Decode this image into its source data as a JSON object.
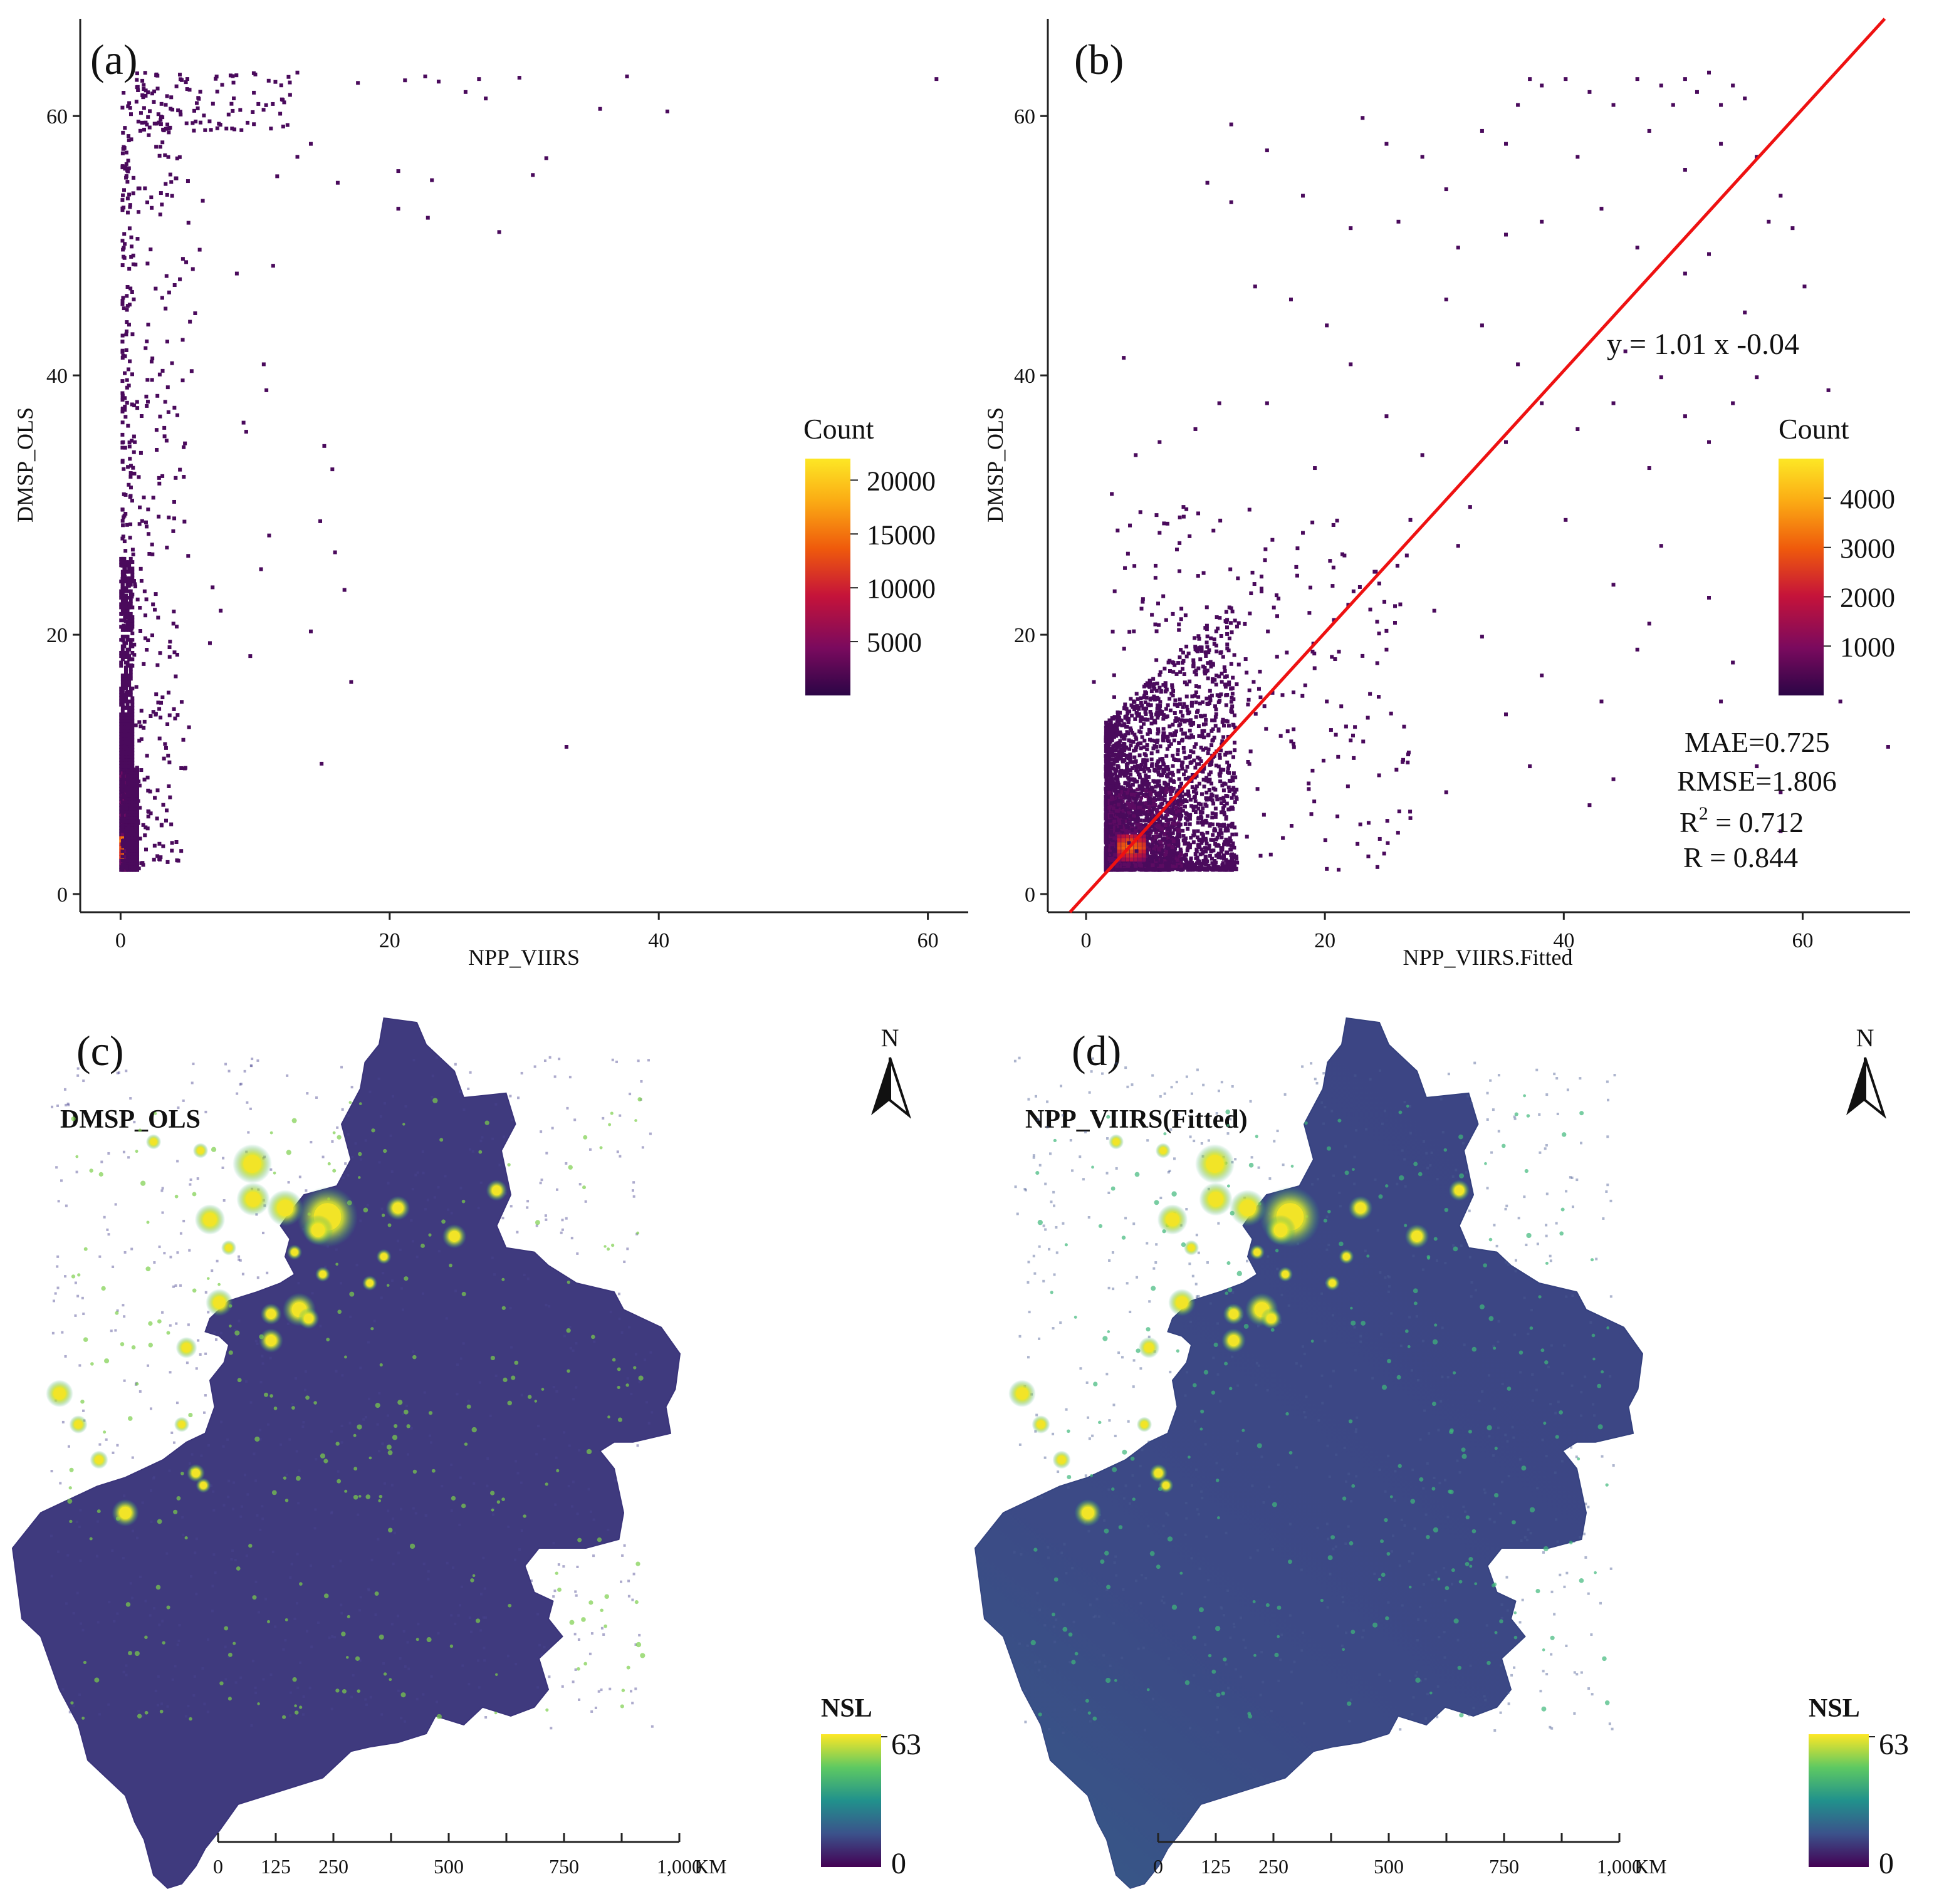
{
  "colors": {
    "viridis": [
      "#440154",
      "#3b528b",
      "#21918c",
      "#5ec962",
      "#fde725"
    ],
    "inferno": [
      "#2b0546",
      "#7a0a5e",
      "#c5133a",
      "#ef5a0c",
      "#fbab14",
      "#fde725"
    ],
    "fit_line": "#ee1111",
    "map_background": "#3f3a7e",
    "map_glow": "#f2e427",
    "map_halo": "#2bb07f"
  },
  "icons": {
    "north_arrow": "north-arrow-icon"
  },
  "chart_data": [
    {
      "id": "a",
      "type": "scatter",
      "panel_label": "(a)",
      "xlabel": "NPP_VIIRS",
      "ylabel": "DMSP_OLS",
      "xlim": [
        -3,
        63
      ],
      "ylim": [
        -1.4,
        67.5
      ],
      "xticks": [
        0,
        20,
        40,
        60
      ],
      "yticks": [
        0,
        20,
        40,
        60
      ],
      "legend": {
        "title": "Count",
        "position": "right",
        "range": [
          0,
          22000
        ],
        "ticks": [
          5000,
          10000,
          15000,
          20000
        ]
      },
      "dense_core": {
        "x": [
          0,
          0.5
        ],
        "y": [
          2,
          26
        ],
        "peak_y": [
          3,
          4.5
        ]
      },
      "points": [
        [
          13,
          63.5
        ],
        [
          17.5,
          62.7
        ],
        [
          21,
          62.9
        ],
        [
          22.5,
          63.2
        ],
        [
          23.5,
          62.8
        ],
        [
          26.5,
          63
        ],
        [
          29.5,
          63.1
        ],
        [
          37.5,
          63.2
        ],
        [
          60.5,
          63
        ],
        [
          25.5,
          62
        ],
        [
          27,
          61.5
        ],
        [
          35.5,
          60.7
        ],
        [
          40.5,
          60.5
        ],
        [
          31.5,
          56.9
        ],
        [
          30.5,
          55.6
        ],
        [
          20.5,
          55.9
        ],
        [
          23,
          55.2
        ],
        [
          14,
          58
        ],
        [
          13,
          57
        ],
        [
          11.5,
          55.5
        ],
        [
          16,
          55
        ],
        [
          20.5,
          53
        ],
        [
          22.7,
          52.3
        ],
        [
          28,
          51.2
        ],
        [
          8.5,
          48
        ],
        [
          11.2,
          48.6
        ],
        [
          10.5,
          41
        ],
        [
          10.7,
          39
        ],
        [
          9,
          36.5
        ],
        [
          9.2,
          35.8
        ],
        [
          15,
          34.7
        ],
        [
          15.6,
          32.9
        ],
        [
          14.7,
          28.9
        ],
        [
          10.9,
          27.8
        ],
        [
          15.8,
          26.5
        ],
        [
          10.3,
          25.2
        ],
        [
          16.5,
          23.6
        ],
        [
          6.7,
          23.8
        ],
        [
          14,
          20.4
        ],
        [
          9.5,
          18.5
        ],
        [
          17,
          16.5
        ],
        [
          14.8,
          10.2
        ],
        [
          33,
          11.5
        ],
        [
          6.5,
          19.5
        ],
        [
          7.3,
          22
        ]
      ]
    },
    {
      "id": "b",
      "type": "scatter",
      "panel_label": "(b)",
      "xlabel": "NPP_VIIRS.Fitted",
      "ylabel": "DMSP_OLS",
      "xlim": [
        -3.2,
        69
      ],
      "ylim": [
        -1.4,
        67.5
      ],
      "xticks": [
        0,
        20,
        40,
        60
      ],
      "yticks": [
        0,
        20,
        40,
        60
      ],
      "legend": {
        "title": "Count",
        "position": "right",
        "range": [
          0,
          4800
        ],
        "ticks": [
          1000,
          2000,
          3000,
          4000
        ]
      },
      "fit": {
        "slope": 1.01,
        "intercept": -0.04,
        "equation": "y = 1.01 x -0.04"
      },
      "stats": {
        "mae": "MAE=0.725",
        "rmse": "RMSE=1.806",
        "r2_label": "R",
        "r2_sup": "2",
        "r2_value": " = 0.712",
        "r": "R = 0.844"
      },
      "dense_core": {
        "x": [
          1,
          13
        ],
        "y": [
          2,
          25
        ],
        "peak": [
          3.5,
          3.8
        ]
      },
      "points": [
        [
          36,
          61
        ],
        [
          37,
          63
        ],
        [
          38,
          62.5
        ],
        [
          40,
          63
        ],
        [
          42,
          62
        ],
        [
          44,
          61
        ],
        [
          46,
          63
        ],
        [
          48,
          62.5
        ],
        [
          49,
          61
        ],
        [
          50,
          63
        ],
        [
          51,
          62
        ],
        [
          52,
          63.5
        ],
        [
          53,
          61
        ],
        [
          54,
          62.5
        ],
        [
          55,
          61.5
        ],
        [
          33,
          59
        ],
        [
          35,
          58
        ],
        [
          41,
          57
        ],
        [
          47,
          59
        ],
        [
          50,
          56
        ],
        [
          53,
          58
        ],
        [
          56,
          57
        ],
        [
          58,
          54
        ],
        [
          59,
          51.5
        ],
        [
          57,
          52
        ],
        [
          23,
          60
        ],
        [
          25,
          58
        ],
        [
          28,
          57
        ],
        [
          30,
          54.5
        ],
        [
          12,
          59.5
        ],
        [
          15,
          57.5
        ],
        [
          10,
          55
        ],
        [
          12,
          53.5
        ],
        [
          18,
          54
        ],
        [
          22,
          51.5
        ],
        [
          26,
          52
        ],
        [
          31,
          50
        ],
        [
          35,
          51
        ],
        [
          38,
          52
        ],
        [
          43,
          53
        ],
        [
          46,
          50
        ],
        [
          50,
          48
        ],
        [
          52,
          49.5
        ],
        [
          55,
          45
        ],
        [
          45,
          42
        ],
        [
          48,
          40
        ],
        [
          44,
          38
        ],
        [
          41,
          36
        ],
        [
          47,
          33
        ],
        [
          50,
          37
        ],
        [
          52,
          35
        ],
        [
          54,
          38
        ],
        [
          56,
          40
        ],
        [
          60,
          47
        ],
        [
          30,
          46
        ],
        [
          33,
          44
        ],
        [
          36,
          41
        ],
        [
          38,
          38
        ],
        [
          35,
          35
        ],
        [
          32,
          30
        ],
        [
          28,
          34
        ],
        [
          25,
          37
        ],
        [
          22,
          41
        ],
        [
          20,
          44
        ],
        [
          17,
          46
        ],
        [
          14,
          47
        ],
        [
          11,
          38
        ],
        [
          9,
          36
        ],
        [
          6,
          35
        ],
        [
          3,
          41.5
        ],
        [
          2,
          31
        ],
        [
          4,
          34
        ],
        [
          6,
          28
        ],
        [
          8,
          30
        ],
        [
          18,
          28
        ],
        [
          24,
          25
        ],
        [
          29,
          22
        ],
        [
          33,
          20
        ],
        [
          38,
          17
        ],
        [
          43,
          15
        ],
        [
          46,
          19
        ],
        [
          47,
          21
        ],
        [
          52,
          23
        ],
        [
          53,
          15
        ],
        [
          56,
          10
        ],
        [
          58,
          5
        ],
        [
          63,
          15
        ],
        [
          67,
          11.5
        ],
        [
          44,
          9
        ],
        [
          42,
          7
        ],
        [
          37,
          10
        ],
        [
          30,
          8
        ],
        [
          27,
          6
        ],
        [
          22,
          12
        ],
        [
          20,
          15
        ],
        [
          25,
          19
        ],
        [
          35,
          14
        ],
        [
          15,
          38
        ],
        [
          19,
          33
        ],
        [
          27,
          29
        ],
        [
          31,
          27
        ],
        [
          40,
          29
        ],
        [
          48,
          27
        ],
        [
          44,
          24
        ],
        [
          61,
          25
        ],
        [
          62,
          39
        ],
        [
          0.5,
          16.5
        ],
        [
          54,
          18
        ],
        [
          58,
          8
        ]
      ]
    }
  ],
  "maps": [
    {
      "id": "c",
      "panel_label": "(c)",
      "title": "DMSP_OLS",
      "north_label": "N",
      "legend": {
        "title": "NSL",
        "max": "63",
        "min": "0"
      },
      "scale": {
        "labels": [
          "0",
          "125",
          "250",
          "500",
          "750",
          "1,000"
        ],
        "unit": "KM",
        "values": [
          0,
          125,
          250,
          500,
          750,
          1000
        ]
      }
    },
    {
      "id": "d",
      "panel_label": "(d)",
      "title": "NPP_VIIRS(Fitted)",
      "north_label": "N",
      "legend": {
        "title": "NSL",
        "max": "63",
        "min": "0"
      },
      "scale": {
        "labels": [
          "0",
          "125",
          "250",
          "500",
          "750",
          "1,000"
        ],
        "unit": "KM",
        "values": [
          0,
          125,
          250,
          500,
          750,
          1000
        ]
      }
    }
  ]
}
